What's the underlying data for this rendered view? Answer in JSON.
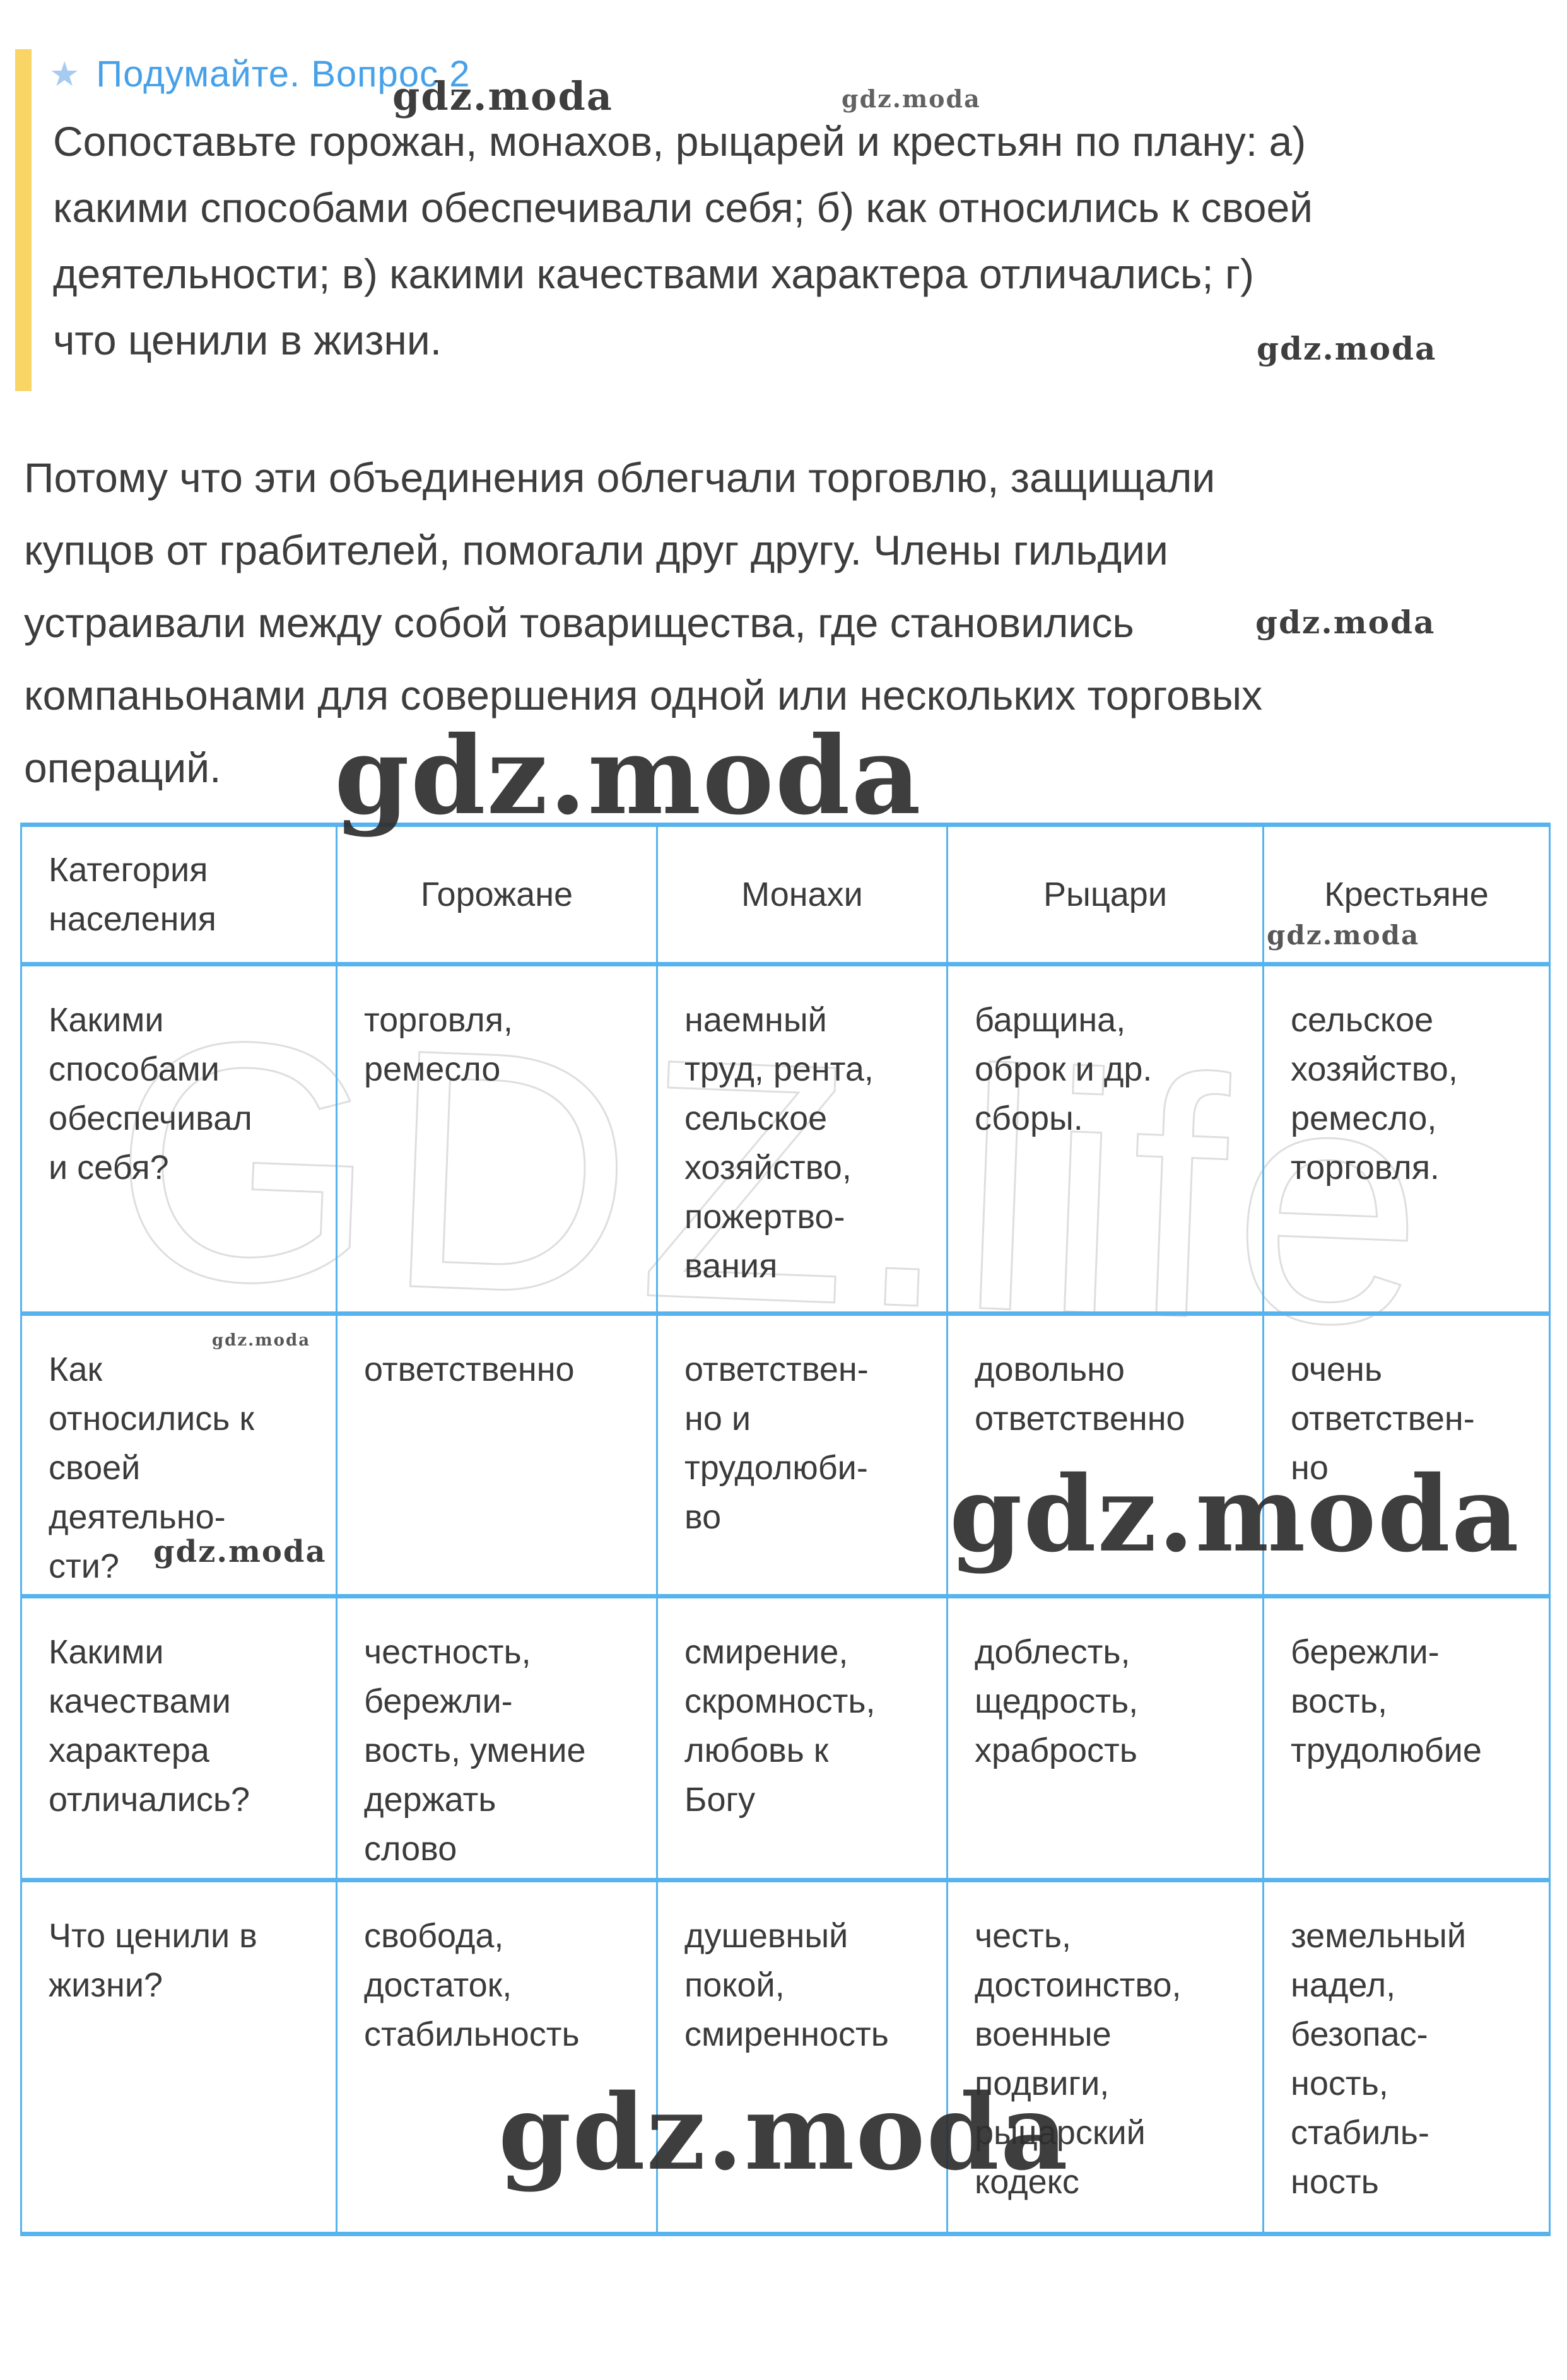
{
  "header": {
    "star_icon": "★",
    "title": "Подумайте. Вопрос 2",
    "accent_color": "#47a1e9",
    "bar_color": "#f8d565"
  },
  "question": {
    "text": "Сопоставьте горожан, монахов, рыцарей и крестьян по плану: а)\nкакими способами обеспечивали себя; б) как относились к своей\nдеятельности; в) какими качествами характера отличались; г)\nчто ценили в жизни."
  },
  "answer": {
    "text": "Потому что эти объединения облегчали торговлю, защищали\nкупцов от грабителей, помогали друг другу. Члены гильдии\nустраивали между собой товарищества, где становились\nкомпаньонами для совершения одной или нескольких торговых\nопераций."
  },
  "watermarks": {
    "brand": "gdz.moda",
    "giant": "GDZ.life"
  },
  "table": {
    "border_color": "#57b3ee",
    "header": [
      "Категория\nнаселения",
      "Горожане",
      "Монахи",
      "Рыцари",
      "Крестьяне"
    ],
    "rows": [
      [
        "Какими\nспособами\nобеспечивал\nи себя?",
        "торговля,\nремесло",
        "наемный\nтруд, рента,\nсельское\nхозяйство,\nпожертво-\nвания",
        "барщина,\nоброк и др.\nсборы.",
        "сельское\nхозяйство,\nремесло,\nторговля."
      ],
      [
        "Как\nотносились к\nсвоей\nдеятельно-\nсти?",
        "ответственно",
        "ответствен-\nно и\nтрудолюби-\nво",
        "довольно\nответственно",
        "очень\nответствен-\nно"
      ],
      [
        "Какими\nкачествами\nхарактера\nотличались?",
        "честность,\nбережли-\nвость, умение\nдержать\nслово",
        "смирение,\nскромность,\nлюбовь к\nБогу",
        "доблесть,\nщедрость,\nхрабрость",
        "бережли-\nвость,\nтрудолюбие"
      ],
      [
        "Что ценили в\nжизни?",
        "свобода,\nдостаток,\nстабильность",
        "душевный\nпокой,\nсмиренность",
        "честь,\nдостоинство,\nвоенные\nподвиги,\nрыцарский\nкодекс",
        "земельный\nнадел,\nбезопас-\nность,\nстабиль-\nность"
      ]
    ]
  }
}
